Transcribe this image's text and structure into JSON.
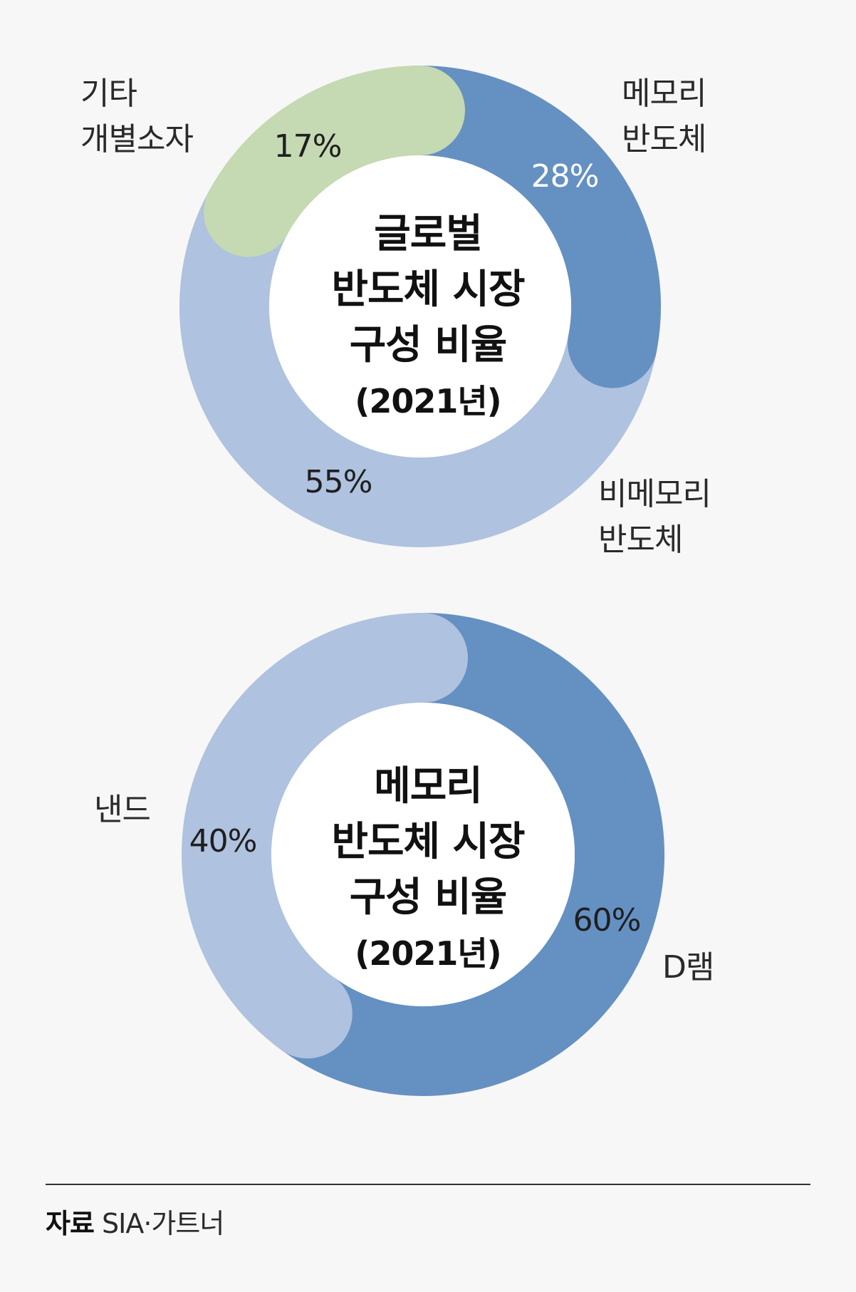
{
  "chart_data": [
    {
      "type": "pie",
      "title": [
        "글로벌",
        "반도체 시장",
        "구성 비율",
        "(2021년)"
      ],
      "slices": [
        {
          "label": [
            "메모리",
            "반도체"
          ],
          "value": 28,
          "pct_label": "28%",
          "color": "#6590c2",
          "pct_color": "light"
        },
        {
          "label": [
            "비메모리",
            "반도체"
          ],
          "value": 55,
          "pct_label": "55%",
          "color": "#afc2df",
          "pct_color": "dark"
        },
        {
          "label": [
            "기타",
            "개별소자"
          ],
          "value": 17,
          "pct_label": "17%",
          "color": "#c5d9b3",
          "pct_color": "dark"
        }
      ]
    },
    {
      "type": "pie",
      "title": [
        "메모리",
        "반도체 시장",
        "구성 비율",
        "(2021년)"
      ],
      "slices": [
        {
          "label": [
            "D램"
          ],
          "value": 60,
          "pct_label": "60%",
          "color": "#6590c2",
          "pct_color": "dark"
        },
        {
          "label": [
            "낸드"
          ],
          "value": 40,
          "pct_label": "40%",
          "color": "#afc2df",
          "pct_color": "dark"
        }
      ]
    }
  ],
  "source": {
    "label": "자료",
    "text": "SIA·가트너"
  }
}
